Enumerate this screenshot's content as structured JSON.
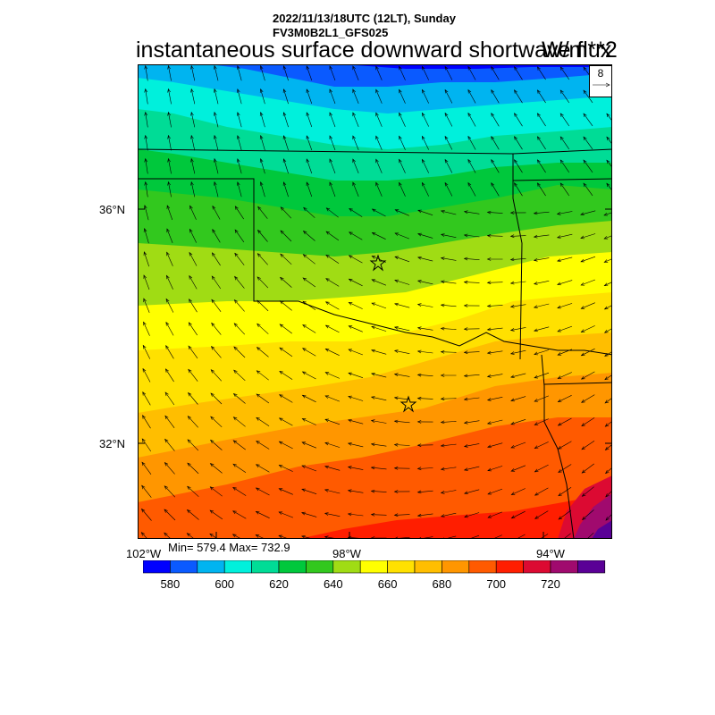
{
  "header": {
    "datetime": "2022/11/13/18UTC (12LT), Sunday",
    "model": "FV3M0B2L1_GFS025",
    "title": "instantaneous surface downward shortwave flux",
    "title_overlap": "W/m**2"
  },
  "vector_key": {
    "label": "8",
    "icon": "arrow-right-icon"
  },
  "axes": {
    "lat_labels": [
      "36°N",
      "32°N"
    ],
    "lon_labels": [
      "102°W",
      "98°W",
      "94°W"
    ]
  },
  "stats": {
    "text": "Min= 579.4 Max= 732.9",
    "min": 579.4,
    "max": 732.9
  },
  "colorbar": {
    "colors": [
      "#0000ff",
      "#0a5aff",
      "#00b4f0",
      "#00f0dc",
      "#00dc96",
      "#00c83c",
      "#32c81e",
      "#a0dc14",
      "#ffff00",
      "#ffe100",
      "#ffbe00",
      "#ff9600",
      "#ff5a00",
      "#ff1e00",
      "#dc0a32",
      "#a00a6e",
      "#5a0096"
    ],
    "tick_labels": [
      "580",
      "600",
      "620",
      "640",
      "660",
      "680",
      "700",
      "720"
    ]
  },
  "map_layers": [
    "shortwave-flux-field",
    "wind-vectors",
    "state-borders",
    "city-markers"
  ]
}
